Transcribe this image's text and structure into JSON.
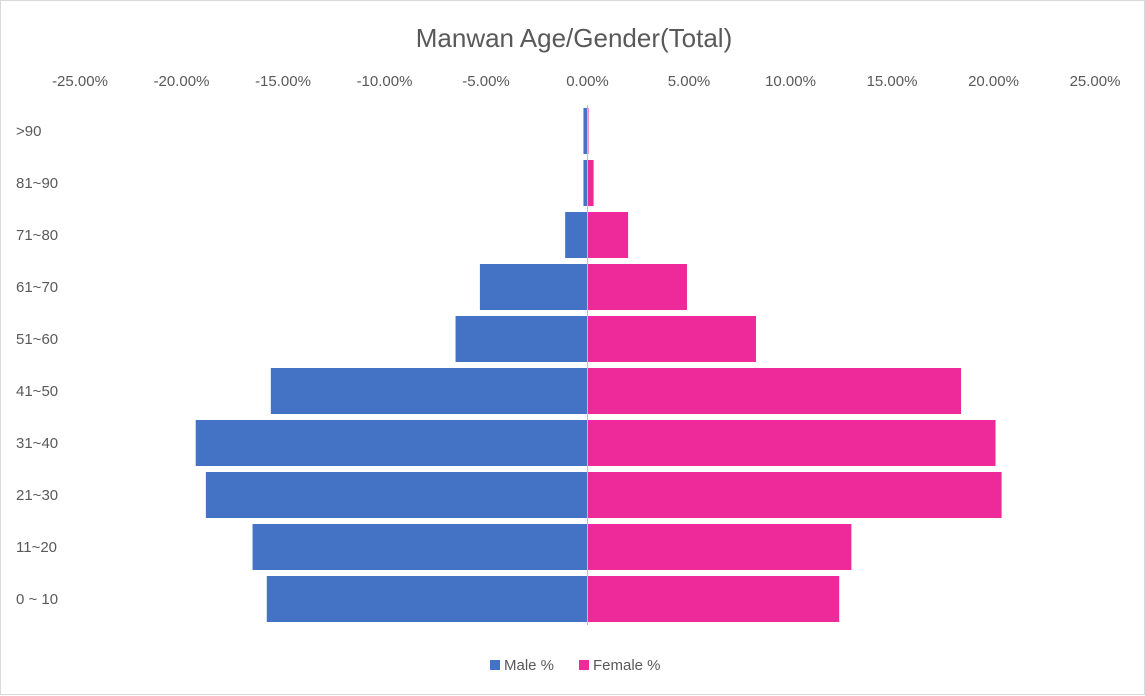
{
  "chart_data": {
    "type": "bar",
    "orientation": "horizontal",
    "title": "Manwan Age/Gender(Total)",
    "xlabel": "",
    "ylabel": "",
    "xlim": [
      -0.25,
      0.25
    ],
    "x_ticks": [
      -0.25,
      -0.2,
      -0.15,
      -0.1,
      -0.05,
      0.0,
      0.05,
      0.1,
      0.15,
      0.2,
      0.25
    ],
    "x_tick_labels": [
      "-25.00%",
      "-20.00%",
      "-15.00%",
      "-10.00%",
      "-5.00%",
      "0.00%",
      "5.00%",
      "10.00%",
      "15.00%",
      "20.00%",
      "25.00%"
    ],
    "categories": [
      ">90",
      "81~90",
      "71~80",
      "61~70",
      "51~60",
      "41~50",
      "31~40",
      "21~30",
      "11~20",
      "0 ~ 10"
    ],
    "series": [
      {
        "name": "Male %",
        "color": "#4472c4",
        "values": [
          -0.002,
          -0.002,
          -0.011,
          -0.053,
          -0.065,
          -0.156,
          -0.193,
          -0.188,
          -0.165,
          -0.158
        ]
      },
      {
        "name": "Female %",
        "color": "#ee2a9a",
        "values": [
          0.0005,
          0.003,
          0.02,
          0.049,
          0.083,
          0.184,
          0.201,
          0.204,
          0.13,
          0.124
        ]
      }
    ],
    "grid": false,
    "legend_position": "bottom"
  }
}
